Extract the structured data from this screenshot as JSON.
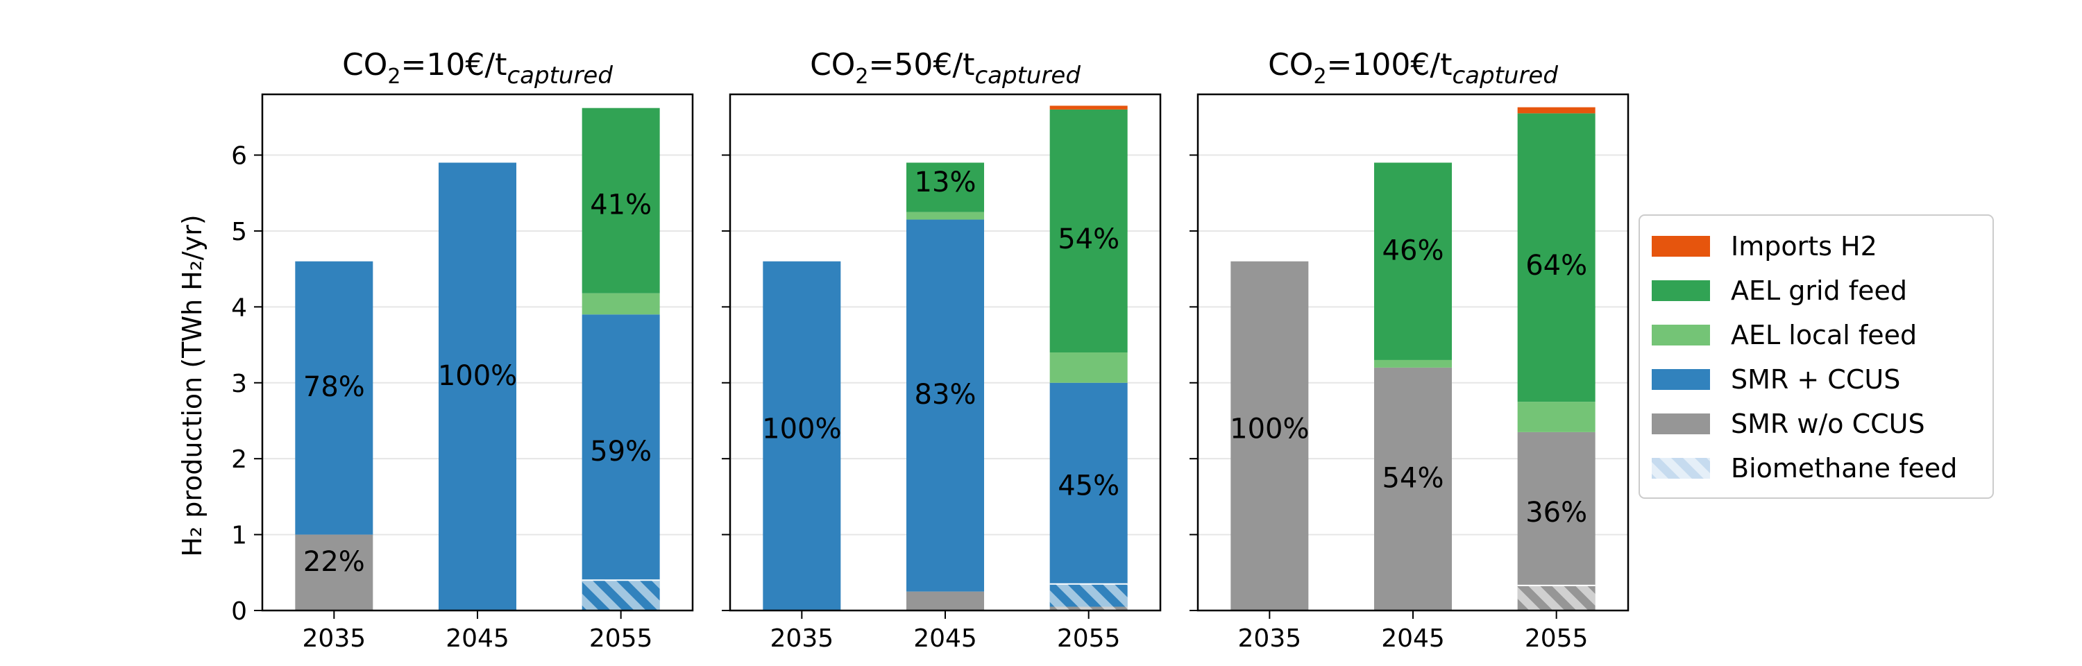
{
  "ylabel": "H₂ production  (TWh H₂/yr)",
  "yticks": [
    "0",
    "1",
    "2",
    "3",
    "4",
    "5",
    "6"
  ],
  "legend": [
    {
      "label": "Imports H2",
      "color": "#e6550d"
    },
    {
      "label": "AEL grid feed",
      "color": "#31a354"
    },
    {
      "label": "AEL local feed",
      "color": "#74c476"
    },
    {
      "label": "SMR + CCUS",
      "color": "#3182bd"
    },
    {
      "label": "SMR w/o CCUS",
      "color": "#969696"
    },
    {
      "label": "Biomethane feed",
      "color": "#c6dbef",
      "pattern": "hatch"
    }
  ],
  "chart_data": [
    {
      "type": "bar",
      "stacked": true,
      "title": {
        "prefix": "CO",
        "sub": "2",
        "mid": "=10€/t",
        "italic_sub": "captured"
      },
      "categories": [
        "2035",
        "2045",
        "2055"
      ],
      "ylim": [
        0,
        6.8
      ],
      "grid": "y",
      "series": [
        {
          "name": "SMR w/o CCUS",
          "values": [
            1.0,
            0,
            0
          ]
        },
        {
          "name": "SMR + CCUS",
          "values": [
            3.6,
            5.9,
            3.9
          ]
        },
        {
          "name": "AEL local feed",
          "values": [
            0,
            0,
            0.28
          ]
        },
        {
          "name": "AEL grid feed",
          "values": [
            0,
            0,
            2.44
          ]
        },
        {
          "name": "Imports H2",
          "values": [
            0,
            0,
            0
          ]
        }
      ],
      "biomethane_feed": [
        0,
        0,
        0.4
      ],
      "annotations": [
        {
          "text": "22%",
          "category": "2035",
          "y": 0.65
        },
        {
          "text": "78%",
          "category": "2035",
          "y": 2.95
        },
        {
          "text": "100%",
          "category": "2045",
          "y": 3.1
        },
        {
          "text": "59%",
          "category": "2055",
          "y": 2.1
        },
        {
          "text": "41%",
          "category": "2055",
          "y": 5.35
        }
      ]
    },
    {
      "type": "bar",
      "stacked": true,
      "title": {
        "prefix": "CO",
        "sub": "2",
        "mid": "=50€/t",
        "italic_sub": "captured"
      },
      "categories": [
        "2035",
        "2045",
        "2055"
      ],
      "ylim": [
        0,
        6.8
      ],
      "grid": "y",
      "series": [
        {
          "name": "SMR w/o CCUS",
          "values": [
            0,
            0.25,
            0.05
          ]
        },
        {
          "name": "SMR + CCUS",
          "values": [
            4.6,
            4.9,
            2.95
          ]
        },
        {
          "name": "AEL local feed",
          "values": [
            0,
            0.1,
            0.4
          ]
        },
        {
          "name": "AEL grid feed",
          "values": [
            0,
            0.65,
            3.2
          ]
        },
        {
          "name": "Imports H2",
          "values": [
            0,
            0,
            0.05
          ]
        }
      ],
      "biomethane_feed": [
        0,
        0,
        0.35
      ],
      "annotations": [
        {
          "text": "100%",
          "category": "2035",
          "y": 2.4
        },
        {
          "text": "83%",
          "category": "2045",
          "y": 2.85
        },
        {
          "text": "13%",
          "category": "2045",
          "y": 5.65
        },
        {
          "text": "45%",
          "category": "2055",
          "y": 1.65
        },
        {
          "text": "54%",
          "category": "2055",
          "y": 4.9
        }
      ]
    },
    {
      "type": "bar",
      "stacked": true,
      "title": {
        "prefix": "CO",
        "sub": "2",
        "mid": "=100€/t",
        "italic_sub": "captured"
      },
      "categories": [
        "2035",
        "2045",
        "2055"
      ],
      "ylim": [
        0,
        6.8
      ],
      "grid": "y",
      "series": [
        {
          "name": "SMR w/o CCUS",
          "values": [
            4.6,
            3.2,
            2.35
          ]
        },
        {
          "name": "SMR + CCUS",
          "values": [
            0,
            0,
            0
          ]
        },
        {
          "name": "AEL local feed",
          "values": [
            0,
            0.1,
            0.4
          ]
        },
        {
          "name": "AEL grid feed",
          "values": [
            0,
            2.6,
            3.8
          ]
        },
        {
          "name": "Imports H2",
          "values": [
            0,
            0,
            0.08
          ]
        }
      ],
      "biomethane_feed": [
        0,
        0,
        0.33
      ],
      "annotations": [
        {
          "text": "100%",
          "category": "2035",
          "y": 2.4
        },
        {
          "text": "54%",
          "category": "2045",
          "y": 1.75
        },
        {
          "text": "46%",
          "category": "2045",
          "y": 4.75
        },
        {
          "text": "36%",
          "category": "2055",
          "y": 1.3
        },
        {
          "text": "64%",
          "category": "2055",
          "y": 4.55
        }
      ]
    }
  ]
}
